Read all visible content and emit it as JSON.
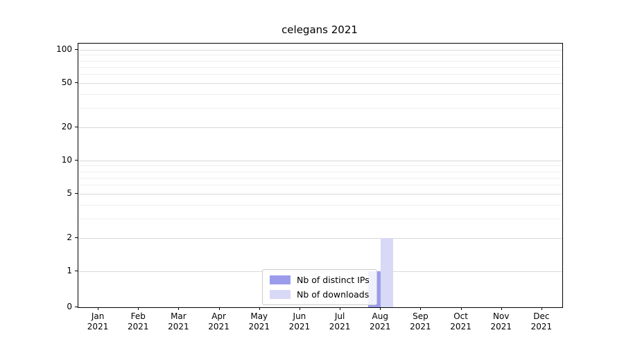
{
  "chart_data": {
    "type": "bar",
    "title": "celegans 2021",
    "categories": [
      "Jan 2021",
      "Feb 2021",
      "Mar 2021",
      "Apr 2021",
      "May 2021",
      "Jun 2021",
      "Jul 2021",
      "Aug 2021",
      "Sep 2021",
      "Oct 2021",
      "Nov 2021",
      "Dec 2021"
    ],
    "series": [
      {
        "name": "Nb of distinct IPs",
        "color": "#9b9bec",
        "values": [
          0,
          0,
          0,
          0,
          0,
          0,
          0,
          1,
          0,
          0,
          0,
          0
        ]
      },
      {
        "name": "Nb of downloads",
        "color": "#d8d8f7",
        "values": [
          0,
          0,
          0,
          0,
          0,
          0,
          0,
          2,
          0,
          0,
          0,
          0
        ]
      }
    ],
    "xlabel": "",
    "ylabel": "",
    "yscale": "symlog",
    "yticks": [
      0,
      1,
      2,
      5,
      10,
      20,
      50,
      100
    ],
    "minor_yticks": [
      3,
      4,
      6,
      7,
      8,
      9,
      30,
      40,
      60,
      70,
      80,
      90
    ],
    "ylim": [
      0,
      110
    ],
    "grid": "horizontal",
    "legend_position": "lower center"
  },
  "colors": {
    "grid_major": "#d9d9d9",
    "grid_minor": "#efefef",
    "axis": "#000000",
    "legend_border": "#cccccc",
    "background": "#ffffff"
  }
}
